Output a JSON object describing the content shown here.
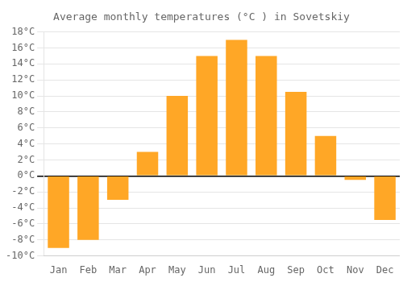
{
  "chart_data": {
    "type": "bar",
    "title": "Average monthly temperatures (°C ) in Sovetskiy",
    "categories": [
      "Jan",
      "Feb",
      "Mar",
      "Apr",
      "May",
      "Jun",
      "Jul",
      "Aug",
      "Sep",
      "Oct",
      "Nov",
      "Dec"
    ],
    "values": [
      -9,
      -8,
      -3,
      3,
      10,
      15,
      17,
      15,
      10.5,
      5,
      -0.5,
      -5.5
    ],
    "color": "#FFA726",
    "ylim": [
      -10,
      18
    ],
    "yticks": [
      {
        "value": -10,
        "label": "-10°C"
      },
      {
        "value": -8,
        "label": "-8°C"
      },
      {
        "value": -6,
        "label": "-6°C"
      },
      {
        "value": -4,
        "label": "-4°C"
      },
      {
        "value": -2,
        "label": "-2°C"
      },
      {
        "value": 0,
        "label": "0°C"
      },
      {
        "value": 2,
        "label": "2°C"
      },
      {
        "value": 4,
        "label": "4°C"
      },
      {
        "value": 6,
        "label": "6°C"
      },
      {
        "value": 8,
        "label": "8°C"
      },
      {
        "value": 10,
        "label": "10°C"
      },
      {
        "value": 12,
        "label": "12°C"
      },
      {
        "value": 14,
        "label": "14°C"
      },
      {
        "value": 16,
        "label": "16°C"
      },
      {
        "value": 18,
        "label": "18°C"
      }
    ],
    "grid": true
  }
}
